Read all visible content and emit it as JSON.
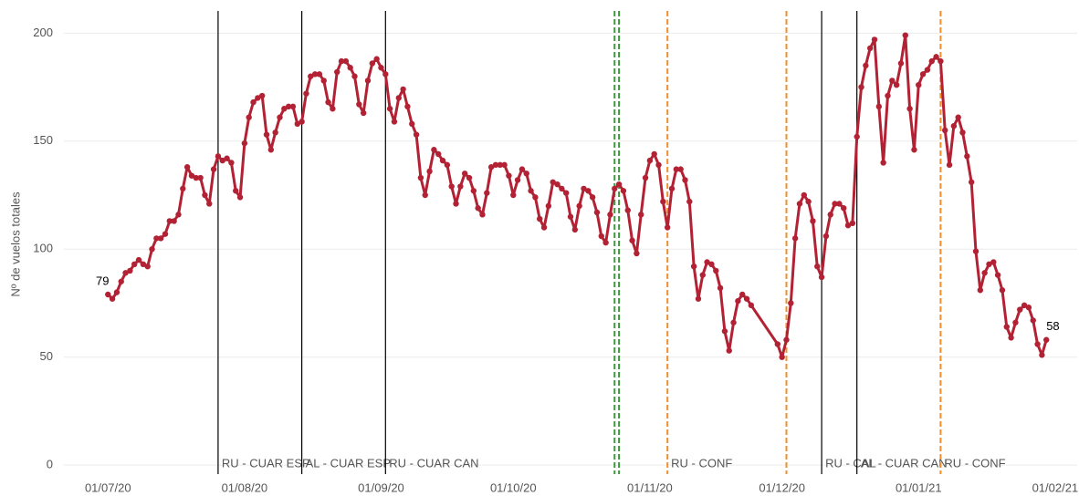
{
  "chart_data": {
    "type": "line",
    "y_label": "Nº de vuelos totales",
    "xlim": [
      "2020-06-21",
      "2021-02-06"
    ],
    "ylim": [
      -5,
      209
    ],
    "yticks": [
      0,
      50,
      100,
      150,
      200
    ],
    "xticks": [
      {
        "value": "2020-07-01",
        "label": "01/07/20"
      },
      {
        "value": "2020-08-01",
        "label": "01/08/20"
      },
      {
        "value": "2020-09-01",
        "label": "01/09/20"
      },
      {
        "value": "2020-10-01",
        "label": "01/10/20"
      },
      {
        "value": "2020-11-01",
        "label": "01/11/20"
      },
      {
        "value": "2020-12-01",
        "label": "01/12/20"
      },
      {
        "value": "2021-01-01",
        "label": "01/01/21"
      },
      {
        "value": "2021-02-01",
        "label": "01/02/21"
      }
    ],
    "grid": true,
    "data_labels": "ends",
    "x": [
      "2020-07-01",
      "2020-07-02",
      "2020-07-03",
      "2020-07-04",
      "2020-07-05",
      "2020-07-06",
      "2020-07-07",
      "2020-07-08",
      "2020-07-09",
      "2020-07-10",
      "2020-07-11",
      "2020-07-12",
      "2020-07-13",
      "2020-07-14",
      "2020-07-15",
      "2020-07-16",
      "2020-07-17",
      "2020-07-18",
      "2020-07-19",
      "2020-07-20",
      "2020-07-21",
      "2020-07-22",
      "2020-07-23",
      "2020-07-24",
      "2020-07-25",
      "2020-07-26",
      "2020-07-27",
      "2020-07-28",
      "2020-07-29",
      "2020-07-30",
      "2020-07-31",
      "2020-08-01",
      "2020-08-02",
      "2020-08-03",
      "2020-08-04",
      "2020-08-05",
      "2020-08-06",
      "2020-08-07",
      "2020-08-08",
      "2020-08-09",
      "2020-08-10",
      "2020-08-11",
      "2020-08-12",
      "2020-08-13",
      "2020-08-14",
      "2020-08-15",
      "2020-08-16",
      "2020-08-17",
      "2020-08-18",
      "2020-08-19",
      "2020-08-20",
      "2020-08-21",
      "2020-08-22",
      "2020-08-23",
      "2020-08-24",
      "2020-08-25",
      "2020-08-26",
      "2020-08-27",
      "2020-08-28",
      "2020-08-29",
      "2020-08-30",
      "2020-08-31",
      "2020-09-01",
      "2020-09-02",
      "2020-09-03",
      "2020-09-04",
      "2020-09-05",
      "2020-09-06",
      "2020-09-07",
      "2020-09-08",
      "2020-09-09",
      "2020-09-10",
      "2020-09-11",
      "2020-09-12",
      "2020-09-13",
      "2020-09-14",
      "2020-09-15",
      "2020-09-16",
      "2020-09-17",
      "2020-09-18",
      "2020-09-19",
      "2020-09-20",
      "2020-09-21",
      "2020-09-22",
      "2020-09-23",
      "2020-09-24",
      "2020-09-25",
      "2020-09-26",
      "2020-09-27",
      "2020-09-28",
      "2020-09-29",
      "2020-09-30",
      "2020-10-01",
      "2020-10-02",
      "2020-10-03",
      "2020-10-04",
      "2020-10-05",
      "2020-10-06",
      "2020-10-07",
      "2020-10-08",
      "2020-10-09",
      "2020-10-10",
      "2020-10-11",
      "2020-10-12",
      "2020-10-13",
      "2020-10-14",
      "2020-10-15",
      "2020-10-16",
      "2020-10-17",
      "2020-10-18",
      "2020-10-19",
      "2020-10-20",
      "2020-10-21",
      "2020-10-22",
      "2020-10-23",
      "2020-10-24",
      "2020-10-25",
      "2020-10-26",
      "2020-10-27",
      "2020-10-28",
      "2020-10-29",
      "2020-10-30",
      "2020-10-31",
      "2020-11-01",
      "2020-11-02",
      "2020-11-03",
      "2020-11-04",
      "2020-11-05",
      "2020-11-06",
      "2020-11-07",
      "2020-11-08",
      "2020-11-09",
      "2020-11-10",
      "2020-11-11",
      "2020-11-12",
      "2020-11-13",
      "2020-11-14",
      "2020-11-15",
      "2020-11-16",
      "2020-11-17",
      "2020-11-18",
      "2020-11-19",
      "2020-11-20",
      "2020-11-21",
      "2020-11-22",
      "2020-11-23",
      "2020-11-24",
      "2020-11-30",
      "2020-12-01",
      "2020-12-02",
      "2020-12-03",
      "2020-12-04",
      "2020-12-05",
      "2020-12-06",
      "2020-12-07",
      "2020-12-08",
      "2020-12-09",
      "2020-12-10",
      "2020-12-11",
      "2020-12-12",
      "2020-12-13",
      "2020-12-14",
      "2020-12-15",
      "2020-12-16",
      "2020-12-17",
      "2020-12-18",
      "2020-12-19",
      "2020-12-20",
      "2020-12-21",
      "2020-12-22",
      "2020-12-23",
      "2020-12-24",
      "2020-12-25",
      "2020-12-26",
      "2020-12-27",
      "2020-12-28",
      "2020-12-29",
      "2020-12-30",
      "2020-12-31",
      "2021-01-01",
      "2021-01-02",
      "2021-01-03",
      "2021-01-04",
      "2021-01-05",
      "2021-01-06",
      "2021-01-07",
      "2021-01-08",
      "2021-01-09",
      "2021-01-10",
      "2021-01-11",
      "2021-01-12",
      "2021-01-13",
      "2021-01-14",
      "2021-01-15",
      "2021-01-16",
      "2021-01-17",
      "2021-01-18",
      "2021-01-19",
      "2021-01-20",
      "2021-01-21",
      "2021-01-22",
      "2021-01-23",
      "2021-01-24",
      "2021-01-25",
      "2021-01-26",
      "2021-01-27",
      "2021-01-28",
      "2021-01-29",
      "2021-01-30"
    ],
    "series": [
      {
        "color": "#b22234",
        "values": [
          79,
          77,
          80,
          85,
          89,
          90,
          93,
          95,
          93,
          92,
          100,
          105,
          105,
          107,
          113,
          113,
          116,
          128,
          138,
          134,
          133,
          133,
          125,
          121,
          137,
          143,
          141,
          142,
          140,
          127,
          124,
          149,
          161,
          168,
          170,
          171,
          153,
          146,
          154,
          161,
          165,
          166,
          166,
          158,
          159,
          172,
          180,
          181,
          181,
          178,
          168,
          165,
          182,
          187,
          187,
          184,
          180,
          167,
          163,
          178,
          186,
          188,
          184,
          181,
          165,
          159,
          170,
          174,
          166,
          158,
          153,
          133,
          125,
          136,
          146,
          144,
          141,
          139,
          129,
          121,
          129,
          135,
          133,
          127,
          119,
          116,
          126,
          138,
          139,
          139,
          139,
          134,
          125,
          132,
          137,
          135,
          127,
          124,
          114,
          110,
          120,
          131,
          130,
          128,
          126,
          115,
          109,
          120,
          128,
          127,
          124,
          117,
          106,
          103,
          116,
          128,
          130,
          127,
          118,
          104,
          98,
          116,
          133,
          141,
          144,
          139,
          122,
          110,
          128,
          137,
          137,
          132,
          122,
          92,
          77,
          88,
          94,
          93,
          90,
          82,
          62,
          53,
          66,
          76,
          79,
          77,
          74,
          56,
          50,
          58,
          75,
          105,
          121,
          125,
          122,
          113,
          92,
          87,
          106,
          116,
          121,
          121,
          119,
          111,
          112,
          152,
          175,
          185,
          193,
          197,
          166,
          140,
          171,
          178,
          176,
          186,
          199,
          165,
          146,
          176,
          181,
          183,
          187,
          189,
          187,
          155,
          139,
          157,
          161,
          154,
          143,
          131,
          99,
          81,
          89,
          93,
          94,
          88,
          81,
          64,
          59,
          66,
          72,
          74,
          73,
          67,
          56,
          51,
          58
        ]
      }
    ],
    "vlines": [
      {
        "x": "2020-07-26",
        "style": "solid",
        "color": "#000000",
        "label": "RU - CUAR ESP"
      },
      {
        "x": "2020-08-14",
        "style": "solid",
        "color": "#000000",
        "label": "AL - CUAR ESP"
      },
      {
        "x": "2020-09-02",
        "style": "solid",
        "color": "#000000",
        "label": "RU - CUAR CAN"
      },
      {
        "x": "2020-10-24",
        "style": "dashed",
        "color": "#3a9a3a"
      },
      {
        "x": "2020-10-25",
        "style": "dashed",
        "color": "#3a9a3a"
      },
      {
        "x": "2020-11-05",
        "style": "dashed",
        "color": "#f28e2b",
        "label": "RU - CONF"
      },
      {
        "x": "2020-12-02",
        "style": "dashed",
        "color": "#f28e2b"
      },
      {
        "x": "2020-12-10",
        "style": "solid",
        "color": "#000000",
        "label": "RU - CAL"
      },
      {
        "x": "2020-12-18",
        "style": "solid",
        "color": "#000000",
        "label": "AL - CUAR CAN"
      },
      {
        "x": "2021-01-06",
        "style": "dashed",
        "color": "#f28e2b",
        "label": "RU - CONF"
      }
    ]
  }
}
